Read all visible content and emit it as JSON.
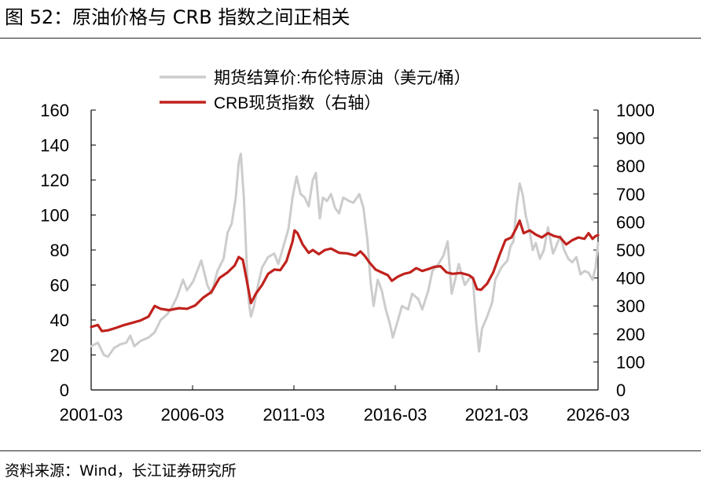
{
  "figure": {
    "title": "图 52：原油价格与 CRB 指数之间正相关",
    "source": "资料来源：Wind，长江证券研究所"
  },
  "colors": {
    "oil": "#cccccc",
    "crb": "#c0221d",
    "axis": "#000000"
  },
  "chart_data": {
    "type": "line",
    "x_tick_labels": [
      "2001-03",
      "2006-03",
      "2011-03",
      "2016-03",
      "2021-03",
      "2026-03"
    ],
    "x_range": [
      2001.17,
      2026.17
    ],
    "y_left": {
      "ticks": [
        0,
        20,
        40,
        60,
        80,
        100,
        120,
        140,
        160
      ],
      "range": [
        0,
        160
      ]
    },
    "y_right": {
      "ticks": [
        0,
        100,
        200,
        300,
        400,
        500,
        600,
        700,
        800,
        900,
        1000
      ],
      "range": [
        0,
        1000
      ]
    },
    "legend": {
      "placement": "top-center"
    },
    "series": [
      {
        "name": "期货结算价:布伦特原油（美元/桶）",
        "axis": "left",
        "points": [
          [
            2001.17,
            25
          ],
          [
            2001.5,
            27
          ],
          [
            2001.8,
            20
          ],
          [
            2002.0,
            19
          ],
          [
            2002.3,
            24
          ],
          [
            2002.6,
            26
          ],
          [
            2002.9,
            27
          ],
          [
            2003.1,
            31
          ],
          [
            2003.3,
            25
          ],
          [
            2003.6,
            28
          ],
          [
            2004.0,
            30
          ],
          [
            2004.3,
            33
          ],
          [
            2004.6,
            40
          ],
          [
            2004.9,
            43
          ],
          [
            2005.1,
            46
          ],
          [
            2005.4,
            53
          ],
          [
            2005.7,
            63
          ],
          [
            2005.9,
            57
          ],
          [
            2006.2,
            62
          ],
          [
            2006.6,
            74
          ],
          [
            2006.9,
            60
          ],
          [
            2007.1,
            55
          ],
          [
            2007.4,
            68
          ],
          [
            2007.7,
            75
          ],
          [
            2007.9,
            90
          ],
          [
            2008.1,
            95
          ],
          [
            2008.3,
            110
          ],
          [
            2008.45,
            130
          ],
          [
            2008.55,
            135
          ],
          [
            2008.7,
            110
          ],
          [
            2008.85,
            70
          ],
          [
            2008.95,
            50
          ],
          [
            2009.05,
            42
          ],
          [
            2009.2,
            48
          ],
          [
            2009.4,
            60
          ],
          [
            2009.6,
            70
          ],
          [
            2009.9,
            76
          ],
          [
            2010.2,
            78
          ],
          [
            2010.4,
            72
          ],
          [
            2010.6,
            80
          ],
          [
            2010.9,
            92
          ],
          [
            2011.1,
            110
          ],
          [
            2011.3,
            122
          ],
          [
            2011.5,
            112
          ],
          [
            2011.7,
            110
          ],
          [
            2011.9,
            105
          ],
          [
            2012.1,
            120
          ],
          [
            2012.25,
            124
          ],
          [
            2012.45,
            98
          ],
          [
            2012.6,
            110
          ],
          [
            2012.8,
            108
          ],
          [
            2013.0,
            112
          ],
          [
            2013.2,
            104
          ],
          [
            2013.4,
            101
          ],
          [
            2013.6,
            110
          ],
          [
            2013.9,
            108
          ],
          [
            2014.1,
            107
          ],
          [
            2014.4,
            112
          ],
          [
            2014.6,
            104
          ],
          [
            2014.8,
            85
          ],
          [
            2014.95,
            62
          ],
          [
            2015.1,
            48
          ],
          [
            2015.3,
            63
          ],
          [
            2015.5,
            57
          ],
          [
            2015.7,
            46
          ],
          [
            2015.9,
            38
          ],
          [
            2016.05,
            30
          ],
          [
            2016.3,
            40
          ],
          [
            2016.5,
            48
          ],
          [
            2016.8,
            46
          ],
          [
            2017.0,
            55
          ],
          [
            2017.3,
            52
          ],
          [
            2017.5,
            46
          ],
          [
            2017.8,
            57
          ],
          [
            2018.0,
            68
          ],
          [
            2018.3,
            72
          ],
          [
            2018.55,
            77
          ],
          [
            2018.75,
            85
          ],
          [
            2018.95,
            55
          ],
          [
            2019.1,
            62
          ],
          [
            2019.3,
            72
          ],
          [
            2019.6,
            60
          ],
          [
            2019.9,
            65
          ],
          [
            2020.0,
            63
          ],
          [
            2020.15,
            40
          ],
          [
            2020.3,
            22
          ],
          [
            2020.45,
            35
          ],
          [
            2020.7,
            42
          ],
          [
            2020.95,
            50
          ],
          [
            2021.1,
            63
          ],
          [
            2021.4,
            70
          ],
          [
            2021.7,
            74
          ],
          [
            2021.85,
            82
          ],
          [
            2022.0,
            85
          ],
          [
            2022.15,
            105
          ],
          [
            2022.3,
            118
          ],
          [
            2022.45,
            112
          ],
          [
            2022.6,
            100
          ],
          [
            2022.8,
            90
          ],
          [
            2022.95,
            80
          ],
          [
            2023.1,
            84
          ],
          [
            2023.3,
            75
          ],
          [
            2023.5,
            80
          ],
          [
            2023.7,
            93
          ],
          [
            2023.95,
            78
          ],
          [
            2024.1,
            82
          ],
          [
            2024.3,
            88
          ],
          [
            2024.5,
            80
          ],
          [
            2024.7,
            75
          ],
          [
            2024.9,
            73
          ],
          [
            2025.1,
            76
          ],
          [
            2025.3,
            66
          ],
          [
            2025.5,
            68
          ],
          [
            2025.7,
            67
          ],
          [
            2025.9,
            63
          ],
          [
            2026.05,
            70
          ],
          [
            2026.17,
            84
          ]
        ]
      },
      {
        "name": "CRB现货指数（右轴）",
        "axis": "right",
        "points": [
          [
            2001.17,
            225
          ],
          [
            2001.5,
            232
          ],
          [
            2001.7,
            210
          ],
          [
            2002.0,
            213
          ],
          [
            2002.4,
            222
          ],
          [
            2002.8,
            232
          ],
          [
            2003.2,
            240
          ],
          [
            2003.6,
            248
          ],
          [
            2004.0,
            262
          ],
          [
            2004.3,
            300
          ],
          [
            2004.6,
            290
          ],
          [
            2005.0,
            285
          ],
          [
            2005.5,
            292
          ],
          [
            2005.9,
            290
          ],
          [
            2006.3,
            302
          ],
          [
            2006.7,
            330
          ],
          [
            2007.1,
            350
          ],
          [
            2007.5,
            400
          ],
          [
            2007.9,
            420
          ],
          [
            2008.25,
            445
          ],
          [
            2008.45,
            475
          ],
          [
            2008.65,
            465
          ],
          [
            2008.85,
            390
          ],
          [
            2009.05,
            310
          ],
          [
            2009.3,
            345
          ],
          [
            2009.6,
            375
          ],
          [
            2009.9,
            415
          ],
          [
            2010.2,
            430
          ],
          [
            2010.5,
            428
          ],
          [
            2010.8,
            460
          ],
          [
            2011.1,
            530
          ],
          [
            2011.2,
            570
          ],
          [
            2011.35,
            560
          ],
          [
            2011.6,
            520
          ],
          [
            2011.9,
            490
          ],
          [
            2012.1,
            500
          ],
          [
            2012.4,
            485
          ],
          [
            2012.7,
            500
          ],
          [
            2013.0,
            505
          ],
          [
            2013.4,
            490
          ],
          [
            2013.8,
            488
          ],
          [
            2014.2,
            480
          ],
          [
            2014.45,
            495
          ],
          [
            2014.65,
            480
          ],
          [
            2014.9,
            455
          ],
          [
            2015.2,
            430
          ],
          [
            2015.5,
            420
          ],
          [
            2015.8,
            410
          ],
          [
            2016.0,
            390
          ],
          [
            2016.3,
            405
          ],
          [
            2016.6,
            415
          ],
          [
            2016.9,
            420
          ],
          [
            2017.2,
            435
          ],
          [
            2017.5,
            425
          ],
          [
            2017.8,
            432
          ],
          [
            2018.1,
            440
          ],
          [
            2018.4,
            442
          ],
          [
            2018.7,
            420
          ],
          [
            2019.0,
            415
          ],
          [
            2019.4,
            418
          ],
          [
            2019.8,
            410
          ],
          [
            2020.0,
            400
          ],
          [
            2020.2,
            360
          ],
          [
            2020.4,
            358
          ],
          [
            2020.7,
            380
          ],
          [
            2021.0,
            420
          ],
          [
            2021.3,
            480
          ],
          [
            2021.6,
            535
          ],
          [
            2021.9,
            545
          ],
          [
            2022.15,
            580
          ],
          [
            2022.3,
            605
          ],
          [
            2022.5,
            560
          ],
          [
            2022.8,
            570
          ],
          [
            2023.1,
            555
          ],
          [
            2023.4,
            545
          ],
          [
            2023.7,
            560
          ],
          [
            2024.0,
            550
          ],
          [
            2024.3,
            545
          ],
          [
            2024.6,
            520
          ],
          [
            2024.9,
            535
          ],
          [
            2025.2,
            545
          ],
          [
            2025.5,
            540
          ],
          [
            2025.7,
            560
          ],
          [
            2025.9,
            540
          ],
          [
            2026.05,
            550
          ],
          [
            2026.17,
            553
          ]
        ]
      }
    ]
  }
}
